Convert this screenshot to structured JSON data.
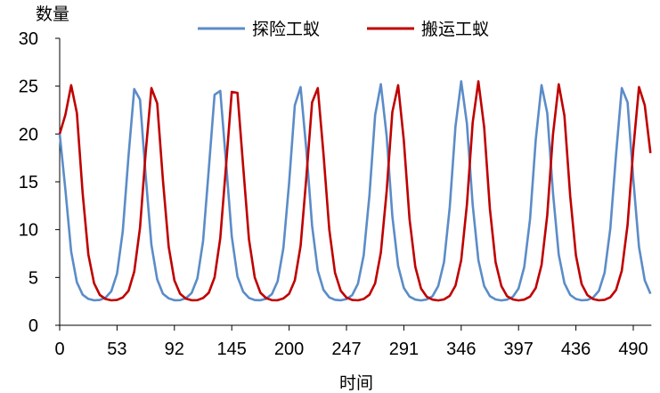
{
  "chart_data": {
    "type": "line",
    "title": "",
    "xlabel": "时间",
    "ylabel": "数量",
    "ylim": [
      0,
      30
    ],
    "yticks": [
      0,
      5,
      10,
      15,
      20,
      25,
      30
    ],
    "x_tick_labels": [
      "0",
      "53",
      "92",
      "145",
      "200",
      "247",
      "291",
      "346",
      "397",
      "436",
      "490"
    ],
    "grid": false,
    "legend_position": "top",
    "series": [
      {
        "name": "探险工蚁",
        "color": "#5b8cc8",
        "values": [
          20,
          14.2,
          7.7,
          4.5,
          3.2,
          2.76,
          2.61,
          2.65,
          2.89,
          3.57,
          5.4,
          9.8,
          17.7,
          24.7,
          23.6,
          15.6,
          8.4,
          4.8,
          3.3,
          2.81,
          2.62,
          2.63,
          2.83,
          3.37,
          4.9,
          8.8,
          16.3,
          24.1,
          24.5,
          17.0,
          9.3,
          5.1,
          3.5,
          2.86,
          2.64,
          2.62,
          2.78,
          3.26,
          4.6,
          8.1,
          14.9,
          23.0,
          24.9,
          18.4,
          10.4,
          5.7,
          3.7,
          2.92,
          2.66,
          2.61,
          2.74,
          3.15,
          4.35,
          7.3,
          13.6,
          22.0,
          25.2,
          19.8,
          11.4,
          6.2,
          3.9,
          3.0,
          2.68,
          2.6,
          2.7,
          3.04,
          4.1,
          6.6,
          12.3,
          20.8,
          25.5,
          21.1,
          12.6,
          6.8,
          4.1,
          3.06,
          2.7,
          2.6,
          2.68,
          2.97,
          3.85,
          6.1,
          11.1,
          19.4,
          25.1,
          22.2,
          13.9,
          7.4,
          4.4,
          3.18,
          2.75,
          2.61,
          2.65,
          2.9,
          3.6,
          5.5,
          10.1,
          17.9,
          24.8,
          23.3,
          15.3,
          8.2,
          4.7,
          3.3
        ]
      },
      {
        "name": "搬运工蚁",
        "color": "#c00000",
        "values": [
          20,
          22,
          25.1,
          22.2,
          13.8,
          7.4,
          4.4,
          3.17,
          2.75,
          2.61,
          2.65,
          2.91,
          3.6,
          5.6,
          10.2,
          18.1,
          24.8,
          23.2,
          15.2,
          8.2,
          4.7,
          3.3,
          2.79,
          2.62,
          2.63,
          2.85,
          3.4,
          5.0,
          9.1,
          16.7,
          24.4,
          24.3,
          16.5,
          9.0,
          5.0,
          3.4,
          2.84,
          2.63,
          2.62,
          2.8,
          3.3,
          4.7,
          8.3,
          15.4,
          23.3,
          24.8,
          17.9,
          10.0,
          5.5,
          3.6,
          2.9,
          2.65,
          2.61,
          2.75,
          3.2,
          4.4,
          7.6,
          14.0,
          22.3,
          25.1,
          19.3,
          11.1,
          6.1,
          3.85,
          2.97,
          2.68,
          2.6,
          2.7,
          3.07,
          4.15,
          6.8,
          12.6,
          21.2,
          25.5,
          20.7,
          12.2,
          6.6,
          4.1,
          3.04,
          2.7,
          2.6,
          2.68,
          3.0,
          3.9,
          6.3,
          11.5,
          19.9,
          25.2,
          21.9,
          13.5,
          7.3,
          4.3,
          3.15,
          2.74,
          2.61,
          2.66,
          2.93,
          3.7,
          5.7,
          10.5,
          18.4,
          24.9,
          23.0,
          18
        ]
      }
    ]
  }
}
